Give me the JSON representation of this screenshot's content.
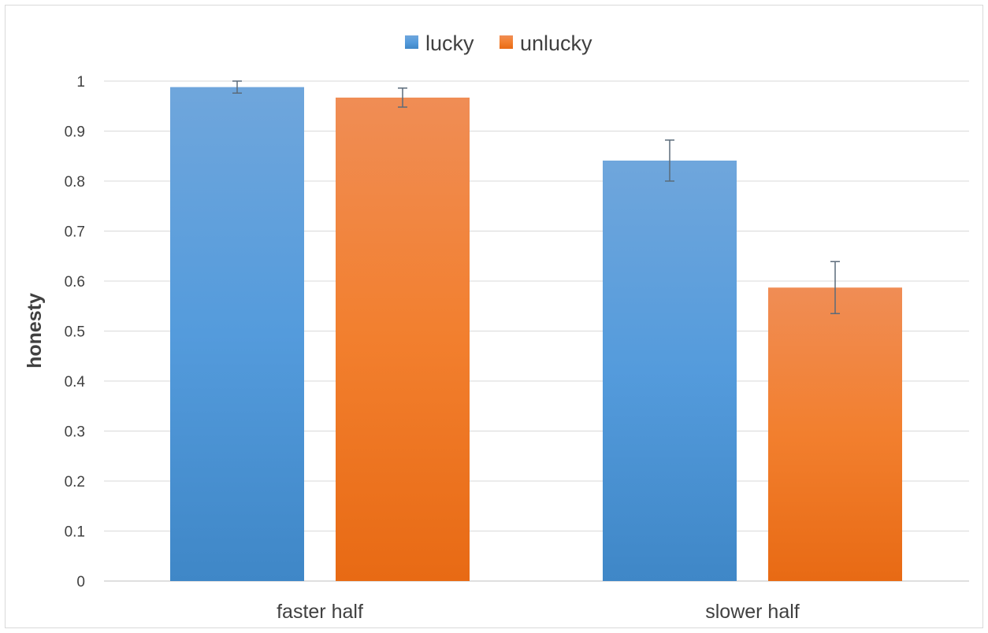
{
  "chart_data": {
    "type": "bar",
    "categories": [
      "faster half",
      "slower half"
    ],
    "series": [
      {
        "name": "lucky",
        "color": "#4a90d4",
        "values": [
          0.988,
          0.841
        ],
        "error": [
          0.012,
          0.041
        ]
      },
      {
        "name": "unlucky",
        "color": "#f07c2a",
        "values": [
          0.967,
          0.587
        ],
        "error": [
          0.019,
          0.052
        ]
      }
    ],
    "title": "",
    "xlabel": "",
    "ylabel": "honesty",
    "ylim": [
      0,
      1
    ],
    "yticks": [
      "0",
      "0.1",
      "0.2",
      "0.3",
      "0.4",
      "0.5",
      "0.6",
      "0.7",
      "0.8",
      "0.9",
      "1"
    ],
    "grid": true,
    "legend_position": "top-center"
  }
}
